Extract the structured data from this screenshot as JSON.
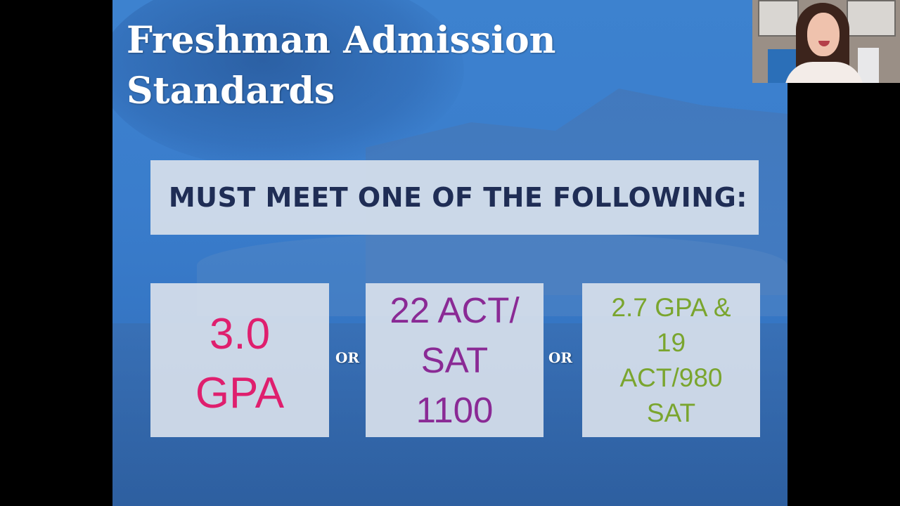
{
  "slide": {
    "title_lines": [
      "Freshman Admission",
      "Standards"
    ],
    "banner": "MUST MEET ONE OF THE FOLLOWING:",
    "options": [
      {
        "lines": [
          "3.0",
          "GPA"
        ],
        "color": "#df1f6e"
      },
      {
        "lines": [
          "22 ACT/",
          "SAT",
          "1100"
        ],
        "color": "#8a2a95"
      },
      {
        "lines": [
          "2.7 GPA &",
          "19",
          "ACT/980",
          "SAT"
        ],
        "color": "#7aa52e"
      }
    ],
    "separator": "OR",
    "colors": {
      "background": "#3a7dcc",
      "banner_text": "#1f2d55",
      "panel": "#d6dfeb"
    }
  },
  "webcam": {
    "feed": "presenter-video"
  }
}
